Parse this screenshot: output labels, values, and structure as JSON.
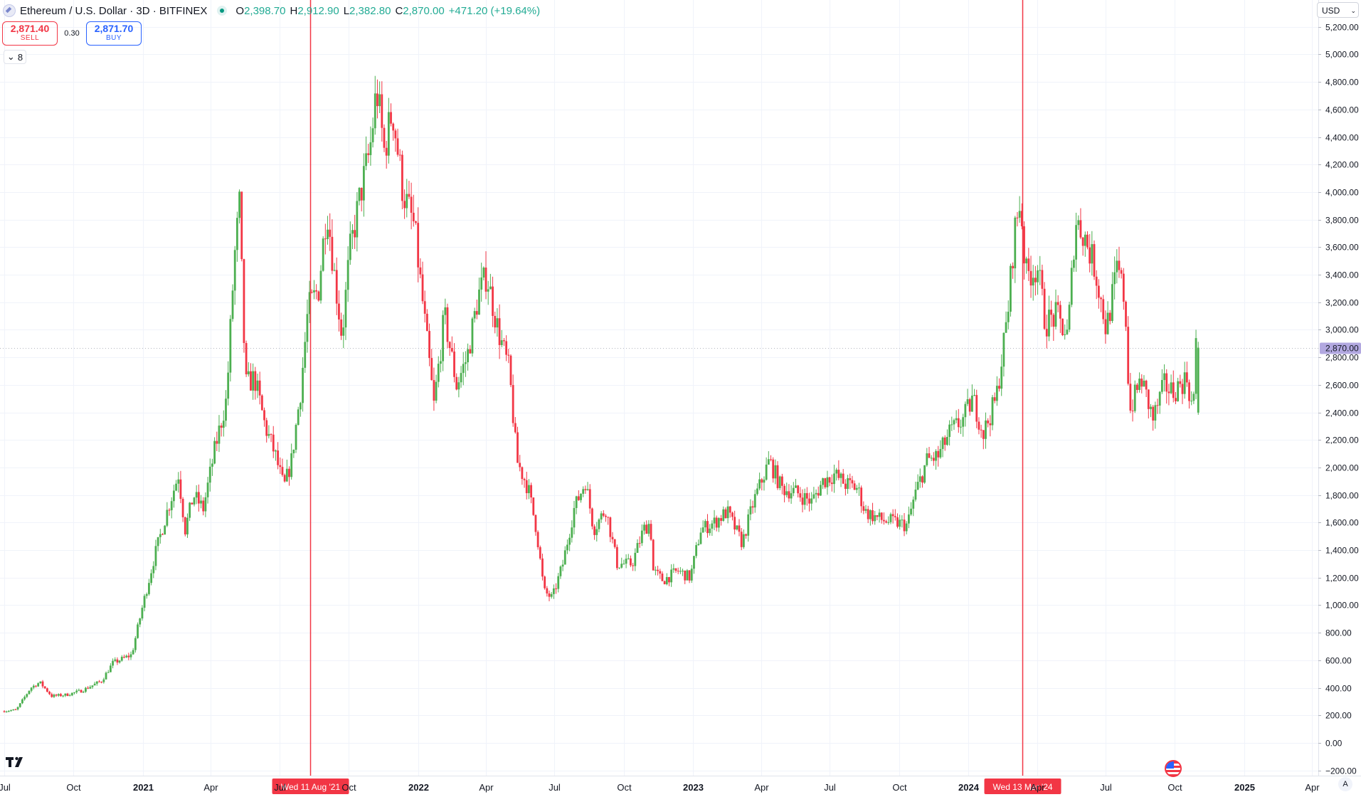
{
  "legend": {
    "title": "Ethereum / U.S. Dollar · 3D · BITFINEX",
    "open_key": "O",
    "open": "2,398.70",
    "high_key": "H",
    "high": "2,912.90",
    "low_key": "L",
    "low": "2,382.80",
    "close_key": "C",
    "close": "2,870.00",
    "change": "+471.20 (+19.64%)"
  },
  "trade": {
    "sell_price": "2,871.40",
    "sell_label": "SELL",
    "spread": "0.30",
    "buy_price": "2,871.70",
    "buy_label": "BUY"
  },
  "indicators_toggle": "8",
  "currency": "USD",
  "auto_label": "A",
  "colors": {
    "up": "#089981",
    "up_light": "#4caf50",
    "down": "#f23645",
    "grid": "#f0f3fa",
    "line_marker": "#f23645",
    "last_price_bg": "#b2a8e0"
  },
  "price_axis": {
    "labels": [
      "5,200.00",
      "5,000.00",
      "4,800.00",
      "4,600.00",
      "4,400.00",
      "4,200.00",
      "4,000.00",
      "3,800.00",
      "3,600.00",
      "3,400.00",
      "3,200.00",
      "3,000.00",
      "2,800.00",
      "2,600.00",
      "2,400.00",
      "2,200.00",
      "2,000.00",
      "1,800.00",
      "1,600.00",
      "1,400.00",
      "1,200.00",
      "1,000.00",
      "800.00",
      "600.00",
      "400.00",
      "200.00",
      "0.00",
      "−200.00"
    ],
    "last_price_label": "2,870.00"
  },
  "time_axis": {
    "labels": [
      "Jul",
      "Oct",
      "2021",
      "Apr",
      "Jul",
      "Oct",
      "2022",
      "Apr",
      "Jul",
      "Oct",
      "2023",
      "Apr",
      "Jul",
      "Oct",
      "2024",
      "Apr",
      "Jul",
      "Oct",
      "2025",
      "Apr"
    ],
    "markers": [
      "Wed 11 Aug '21",
      "Wed 13 Mar '24"
    ]
  },
  "chart_data": {
    "type": "candlestick",
    "title": "Ethereum / U.S. Dollar · 3D · BITFINEX",
    "y_unit": "USD",
    "ylim": [
      -200,
      5300
    ],
    "x_range": [
      "2020-07-01",
      "2025-05-01"
    ],
    "grid": true,
    "last_price": 2870.0,
    "vertical_markers": [
      "2021-08-11",
      "2024-03-13"
    ],
    "price_path": [
      {
        "date": "2020-07-01",
        "close": 230
      },
      {
        "date": "2020-07-20",
        "close": 240
      },
      {
        "date": "2020-08-08",
        "close": 400
      },
      {
        "date": "2020-08-20",
        "close": 440
      },
      {
        "date": "2020-09-05",
        "close": 340
      },
      {
        "date": "2020-09-25",
        "close": 350
      },
      {
        "date": "2020-10-15",
        "close": 380
      },
      {
        "date": "2020-11-10",
        "close": 450
      },
      {
        "date": "2020-11-25",
        "close": 580
      },
      {
        "date": "2020-12-20",
        "close": 640
      },
      {
        "date": "2021-01-03",
        "close": 980
      },
      {
        "date": "2021-01-20",
        "close": 1370
      },
      {
        "date": "2021-02-05",
        "close": 1680
      },
      {
        "date": "2021-02-20",
        "close": 1950
      },
      {
        "date": "2021-03-01",
        "close": 1550
      },
      {
        "date": "2021-03-12",
        "close": 1800
      },
      {
        "date": "2021-03-25",
        "close": 1700
      },
      {
        "date": "2021-04-10",
        "close": 2150
      },
      {
        "date": "2021-04-25",
        "close": 2500
      },
      {
        "date": "2021-05-05",
        "close": 3500
      },
      {
        "date": "2021-05-12",
        "close": 3900
      },
      {
        "date": "2021-05-20",
        "close": 2600
      },
      {
        "date": "2021-06-01",
        "close": 2650
      },
      {
        "date": "2021-06-15",
        "close": 2300
      },
      {
        "date": "2021-06-28",
        "close": 2100
      },
      {
        "date": "2021-07-10",
        "close": 1850
      },
      {
        "date": "2021-07-20",
        "close": 2050
      },
      {
        "date": "2021-08-01",
        "close": 2550
      },
      {
        "date": "2021-08-11",
        "close": 3150
      },
      {
        "date": "2021-08-25",
        "close": 3300
      },
      {
        "date": "2021-09-05",
        "close": 3900
      },
      {
        "date": "2021-09-15",
        "close": 3400
      },
      {
        "date": "2021-09-25",
        "close": 2950
      },
      {
        "date": "2021-10-05",
        "close": 3550
      },
      {
        "date": "2021-10-20",
        "close": 4000
      },
      {
        "date": "2021-11-01",
        "close": 4300
      },
      {
        "date": "2021-11-10",
        "close": 4750
      },
      {
        "date": "2021-11-20",
        "close": 4300
      },
      {
        "date": "2021-12-01",
        "close": 4600
      },
      {
        "date": "2021-12-15",
        "close": 4000
      },
      {
        "date": "2021-12-30",
        "close": 3750
      },
      {
        "date": "2022-01-10",
        "close": 3200
      },
      {
        "date": "2022-01-25",
        "close": 2450
      },
      {
        "date": "2022-02-08",
        "close": 3100
      },
      {
        "date": "2022-02-24",
        "close": 2600
      },
      {
        "date": "2022-03-10",
        "close": 2800
      },
      {
        "date": "2022-03-25",
        "close": 3250
      },
      {
        "date": "2022-04-05",
        "close": 3400
      },
      {
        "date": "2022-04-20",
        "close": 3000
      },
      {
        "date": "2022-05-05",
        "close": 2700
      },
      {
        "date": "2022-05-15",
        "close": 2050
      },
      {
        "date": "2022-05-30",
        "close": 1850
      },
      {
        "date": "2022-06-10",
        "close": 1550
      },
      {
        "date": "2022-06-20",
        "close": 1100
      },
      {
        "date": "2022-07-01",
        "close": 1050
      },
      {
        "date": "2022-07-15",
        "close": 1300
      },
      {
        "date": "2022-07-30",
        "close": 1700
      },
      {
        "date": "2022-08-14",
        "close": 1900
      },
      {
        "date": "2022-08-25",
        "close": 1550
      },
      {
        "date": "2022-09-10",
        "close": 1700
      },
      {
        "date": "2022-09-25",
        "close": 1300
      },
      {
        "date": "2022-10-15",
        "close": 1300
      },
      {
        "date": "2022-10-30",
        "close": 1550
      },
      {
        "date": "2022-11-08",
        "close": 1600
      },
      {
        "date": "2022-11-12",
        "close": 1250
      },
      {
        "date": "2022-11-25",
        "close": 1180
      },
      {
        "date": "2022-12-15",
        "close": 1250
      },
      {
        "date": "2022-12-31",
        "close": 1200
      },
      {
        "date": "2023-01-14",
        "close": 1550
      },
      {
        "date": "2023-02-01",
        "close": 1600
      },
      {
        "date": "2023-02-18",
        "close": 1680
      },
      {
        "date": "2023-03-10",
        "close": 1450
      },
      {
        "date": "2023-03-25",
        "close": 1750
      },
      {
        "date": "2023-04-15",
        "close": 2050
      },
      {
        "date": "2023-05-01",
        "close": 1850
      },
      {
        "date": "2023-05-20",
        "close": 1820
      },
      {
        "date": "2023-06-10",
        "close": 1750
      },
      {
        "date": "2023-06-25",
        "close": 1900
      },
      {
        "date": "2023-07-10",
        "close": 1950
      },
      {
        "date": "2023-07-25",
        "close": 1880
      },
      {
        "date": "2023-08-10",
        "close": 1850
      },
      {
        "date": "2023-08-20",
        "close": 1680
      },
      {
        "date": "2023-09-10",
        "close": 1620
      },
      {
        "date": "2023-09-30",
        "close": 1600
      },
      {
        "date": "2023-10-15",
        "close": 1580
      },
      {
        "date": "2023-10-25",
        "close": 1800
      },
      {
        "date": "2023-11-10",
        "close": 2050
      },
      {
        "date": "2023-11-25",
        "close": 2080
      },
      {
        "date": "2023-12-10",
        "close": 2250
      },
      {
        "date": "2023-12-28",
        "close": 2350
      },
      {
        "date": "2024-01-10",
        "close": 2500
      },
      {
        "date": "2024-01-24",
        "close": 2250
      },
      {
        "date": "2024-02-10",
        "close": 2500
      },
      {
        "date": "2024-02-25",
        "close": 3100
      },
      {
        "date": "2024-03-05",
        "close": 3700
      },
      {
        "date": "2024-03-13",
        "close": 3950
      },
      {
        "date": "2024-03-20",
        "close": 3400
      },
      {
        "date": "2024-04-05",
        "close": 3450
      },
      {
        "date": "2024-04-15",
        "close": 3050
      },
      {
        "date": "2024-04-30",
        "close": 3100
      },
      {
        "date": "2024-05-15",
        "close": 2950
      },
      {
        "date": "2024-05-25",
        "close": 3800
      },
      {
        "date": "2024-06-05",
        "close": 3700
      },
      {
        "date": "2024-06-20",
        "close": 3450
      },
      {
        "date": "2024-07-05",
        "close": 3000
      },
      {
        "date": "2024-07-20",
        "close": 3450
      },
      {
        "date": "2024-07-30",
        "close": 3200
      },
      {
        "date": "2024-08-05",
        "close": 2400
      },
      {
        "date": "2024-08-20",
        "close": 2650
      },
      {
        "date": "2024-09-05",
        "close": 2350
      },
      {
        "date": "2024-09-20",
        "close": 2600
      },
      {
        "date": "2024-10-01",
        "close": 2550
      },
      {
        "date": "2024-10-20",
        "close": 2650
      },
      {
        "date": "2024-10-28",
        "close": 2400
      },
      {
        "date": "2024-11-01",
        "close": 2870
      }
    ]
  }
}
